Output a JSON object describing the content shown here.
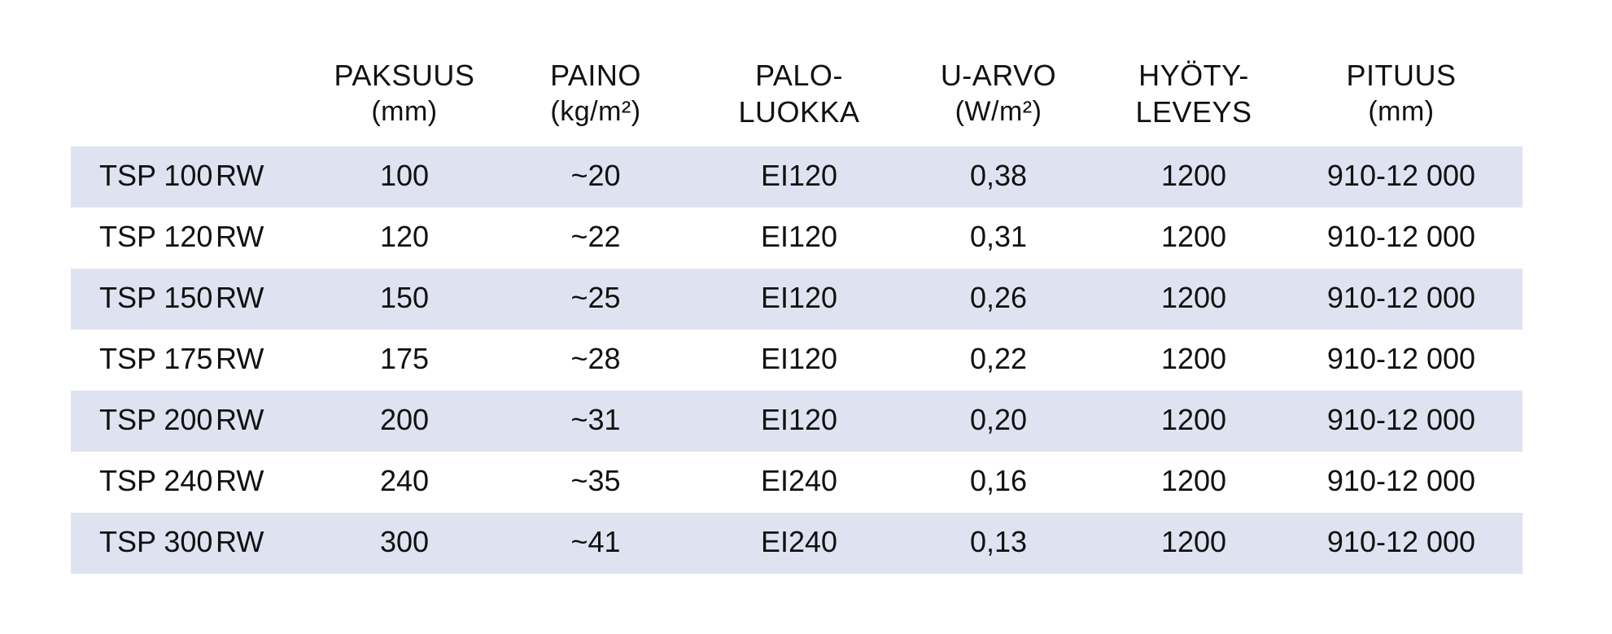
{
  "columns": [
    {
      "line1": "",
      "line2": ""
    },
    {
      "line1": "PAKSUUS",
      "line2": "(mm)"
    },
    {
      "line1": "PAINO",
      "line2": "(kg/m²)"
    },
    {
      "line1": "PALO-",
      "line2": "LUOKKA"
    },
    {
      "line1": "U-ARVO",
      "line2": "(W/m²)"
    },
    {
      "line1": "HYÖTY-",
      "line2": "LEVEYS"
    },
    {
      "line1": "PITUUS",
      "line2": "(mm)"
    }
  ],
  "rows": [
    {
      "model": "TSP 100",
      "suffix": "RW",
      "thickness": "100",
      "weight": "~20",
      "fire_class": "EI120",
      "u_value": "0,38",
      "width": "1200",
      "length": "910-12 000",
      "shaded": true
    },
    {
      "model": "TSP 120",
      "suffix": "RW",
      "thickness": "120",
      "weight": "~22",
      "fire_class": "EI120",
      "u_value": "0,31",
      "width": "1200",
      "length": "910-12 000",
      "shaded": false
    },
    {
      "model": "TSP 150",
      "suffix": "RW",
      "thickness": "150",
      "weight": "~25",
      "fire_class": "EI120",
      "u_value": "0,26",
      "width": "1200",
      "length": "910-12 000",
      "shaded": true
    },
    {
      "model": "TSP 175",
      "suffix": "RW",
      "thickness": "175",
      "weight": "~28",
      "fire_class": "EI120",
      "u_value": "0,22",
      "width": "1200",
      "length": "910-12 000",
      "shaded": false
    },
    {
      "model": "TSP 200",
      "suffix": "RW",
      "thickness": "200",
      "weight": "~31",
      "fire_class": "EI120",
      "u_value": "0,20",
      "width": "1200",
      "length": "910-12 000",
      "shaded": true
    },
    {
      "model": "TSP 240",
      "suffix": "RW",
      "thickness": "240",
      "weight": "~35",
      "fire_class": "EI240",
      "u_value": "0,16",
      "width": "1200",
      "length": "910-12 000",
      "shaded": false
    },
    {
      "model": "TSP 300",
      "suffix": "RW",
      "thickness": "300",
      "weight": "~41",
      "fire_class": "EI240",
      "u_value": "0,13",
      "width": "1200",
      "length": "910-12 000",
      "shaded": true
    }
  ],
  "colors": {
    "row_shade": "#dfe3f1",
    "text": "#111111"
  }
}
